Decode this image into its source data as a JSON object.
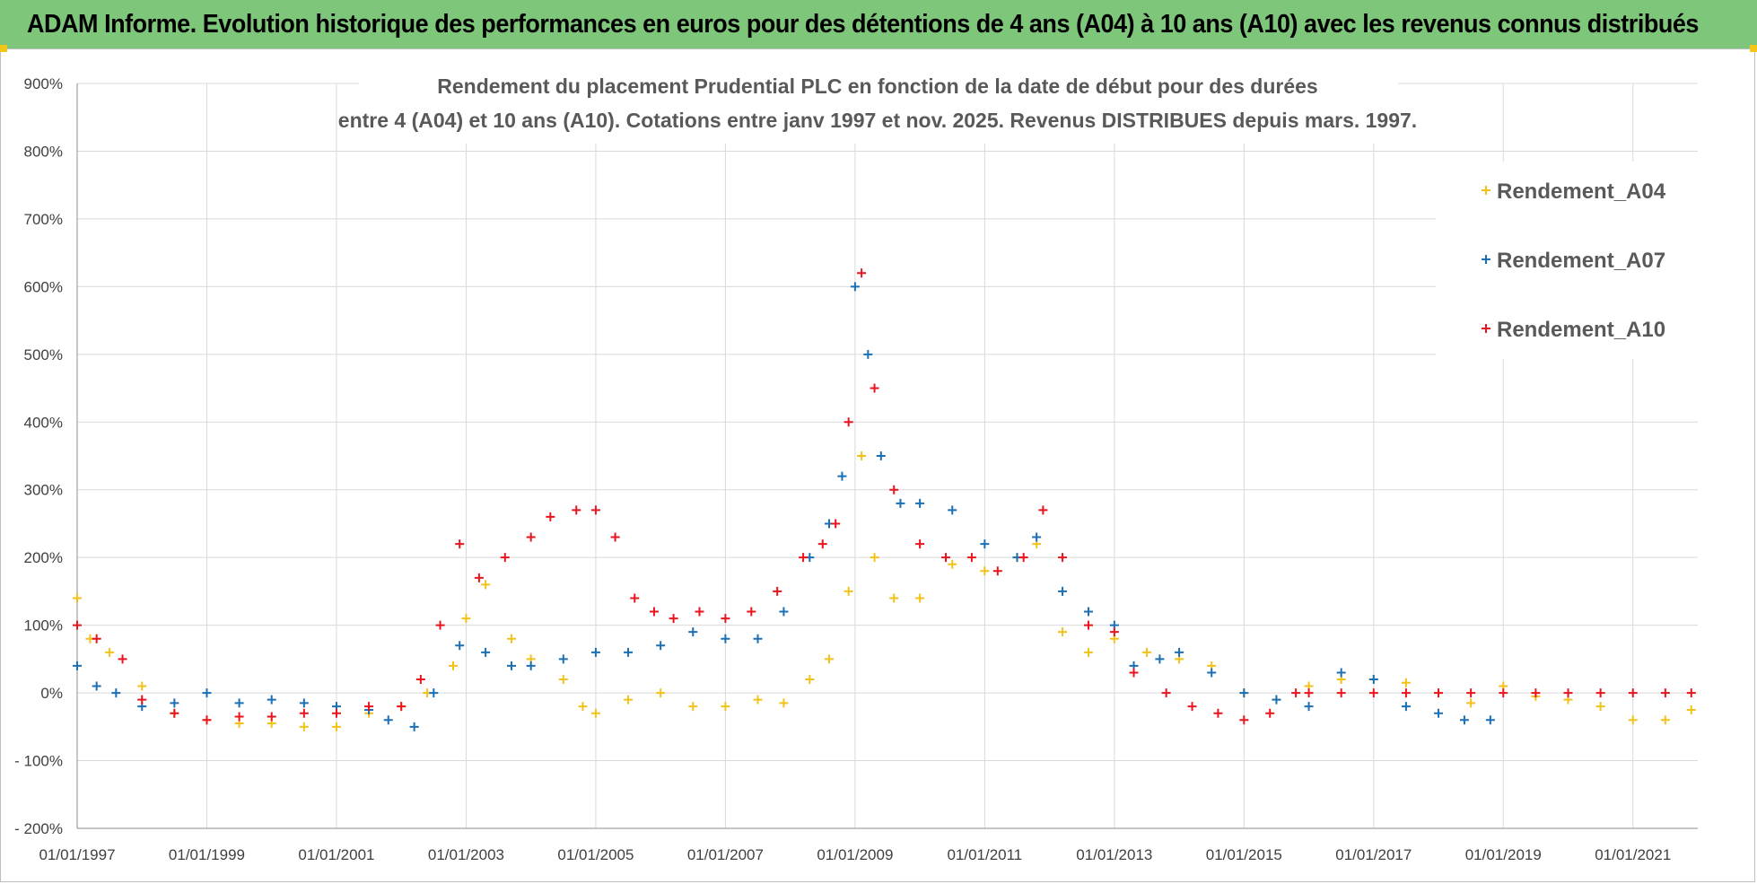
{
  "banner": {
    "text": "ADAM Informe. Evolution historique des performances en euros pour des détentions de 4 ans (A04) à 10 ans (A10) avec les revenus connus distribués"
  },
  "chart_data": {
    "type": "scatter",
    "title_line1": "Rendement du placement Prudential PLC en fonction de la date de début pour des durées",
    "title_line2": "entre 4 (A04) et 10 ans (A10).  Cotations entre janv 1997 et nov. 2025. Revenus DISTRIBUES depuis mars. 1997.",
    "xlabel": "",
    "ylabel": "",
    "x_ticks": [
      "01/01/1997",
      "01/01/1999",
      "01/01/2001",
      "01/01/2003",
      "01/01/2005",
      "01/01/2007",
      "01/01/2009",
      "01/01/2011",
      "01/01/2013",
      "01/01/2015",
      "01/01/2017",
      "01/01/2019",
      "01/01/2021"
    ],
    "y_ticks": [
      "900%",
      "800%",
      "700%",
      "600%",
      "500%",
      "400%",
      "300%",
      "200%",
      "100%",
      "0%",
      "- 100%",
      "- 200%"
    ],
    "xlim": [
      1997.0,
      2022.0
    ],
    "ylim": [
      -200,
      900
    ],
    "grid": true,
    "legend_position": "top-right",
    "marker": "+",
    "series": [
      {
        "name": "Rendement_A04",
        "color": "#f2c21b",
        "x": [
          1997.0,
          1997.2,
          1997.5,
          1998.0,
          1998.5,
          1999.0,
          1999.5,
          2000.0,
          2000.5,
          2001.0,
          2001.5,
          2002.0,
          2002.4,
          2002.8,
          2003.0,
          2003.3,
          2003.7,
          2004.0,
          2004.5,
          2004.8,
          2005.0,
          2005.5,
          2006.0,
          2006.5,
          2007.0,
          2007.5,
          2007.9,
          2008.3,
          2008.6,
          2008.9,
          2009.1,
          2009.3,
          2009.6,
          2010.0,
          2010.5,
          2011.0,
          2011.5,
          2011.8,
          2012.2,
          2012.6,
          2013.0,
          2013.5,
          2014.0,
          2014.5,
          2015.0,
          2015.5,
          2016.0,
          2016.5,
          2017.0,
          2017.5,
          2018.0,
          2018.5,
          2019.0,
          2019.5,
          2020.0,
          2020.5,
          2021.0,
          2021.5,
          2021.9
        ],
        "y": [
          140,
          80,
          60,
          10,
          -30,
          -40,
          -45,
          -45,
          -50,
          -50,
          -30,
          -20,
          0,
          40,
          110,
          160,
          80,
          50,
          20,
          -20,
          -30,
          -10,
          0,
          -20,
          -20,
          -10,
          -15,
          20,
          50,
          150,
          350,
          200,
          140,
          140,
          190,
          180,
          200,
          220,
          90,
          60,
          80,
          60,
          50,
          40,
          0,
          -10,
          10,
          20,
          20,
          15,
          0,
          -15,
          10,
          -5,
          -10,
          -20,
          -40,
          -40,
          -25
        ]
      },
      {
        "name": "Rendement_A07",
        "color": "#1a6fb5",
        "x": [
          1997.0,
          1997.3,
          1997.6,
          1998.0,
          1998.5,
          1999.0,
          1999.5,
          2000.0,
          2000.5,
          2001.0,
          2001.5,
          2001.8,
          2002.2,
          2002.5,
          2002.9,
          2003.3,
          2003.7,
          2004.0,
          2004.5,
          2005.0,
          2005.5,
          2006.0,
          2006.5,
          2007.0,
          2007.5,
          2007.9,
          2008.3,
          2008.6,
          2008.8,
          2009.0,
          2009.2,
          2009.4,
          2009.7,
          2010.0,
          2010.5,
          2011.0,
          2011.5,
          2011.8,
          2012.2,
          2012.6,
          2013.0,
          2013.3,
          2013.7,
          2014.0,
          2014.5,
          2015.0,
          2015.5,
          2016.0,
          2016.5,
          2017.0,
          2017.5,
          2018.0,
          2018.4,
          2018.8
        ],
        "y": [
          40,
          10,
          0,
          -20,
          -15,
          0,
          -15,
          -10,
          -15,
          -20,
          -25,
          -40,
          -50,
          0,
          70,
          60,
          40,
          40,
          50,
          60,
          60,
          70,
          90,
          80,
          80,
          120,
          200,
          250,
          320,
          600,
          500,
          350,
          280,
          280,
          270,
          220,
          200,
          230,
          150,
          120,
          100,
          40,
          50,
          60,
          30,
          0,
          -10,
          -20,
          30,
          20,
          -20,
          -30,
          -40,
          -40
        ]
      },
      {
        "name": "Rendement_A10",
        "color": "#e8141e",
        "x": [
          1997.0,
          1997.3,
          1997.7,
          1998.0,
          1998.5,
          1999.0,
          1999.5,
          2000.0,
          2000.5,
          2001.0,
          2001.5,
          2002.0,
          2002.3,
          2002.6,
          2002.9,
          2003.2,
          2003.6,
          2004.0,
          2004.3,
          2004.7,
          2005.0,
          2005.3,
          2005.6,
          2005.9,
          2006.2,
          2006.6,
          2007.0,
          2007.4,
          2007.8,
          2008.2,
          2008.5,
          2008.7,
          2008.9,
          2009.1,
          2009.3,
          2009.6,
          2010.0,
          2010.4,
          2010.8,
          2011.2,
          2011.6,
          2011.9,
          2012.2,
          2012.6,
          2013.0,
          2013.3,
          2013.8,
          2014.2,
          2014.6,
          2015.0,
          2015.4,
          2015.8,
          2016.0,
          2016.5,
          2017.0,
          2017.5,
          2018.0,
          2018.5,
          2019.0,
          2019.5,
          2020.0,
          2020.5,
          2021.0,
          2021.5,
          2021.9
        ],
        "y": [
          100,
          80,
          50,
          -10,
          -30,
          -40,
          -35,
          -35,
          -30,
          -30,
          -20,
          -20,
          20,
          100,
          220,
          170,
          200,
          230,
          260,
          270,
          270,
          230,
          140,
          120,
          110,
          120,
          110,
          120,
          150,
          200,
          220,
          250,
          400,
          620,
          450,
          300,
          220,
          200,
          200,
          180,
          200,
          270,
          200,
          100,
          90,
          30,
          0,
          -20,
          -30,
          -40,
          -30,
          0,
          0,
          0,
          0,
          0,
          0,
          0,
          0,
          0,
          0,
          0,
          0,
          0,
          0
        ]
      }
    ]
  }
}
